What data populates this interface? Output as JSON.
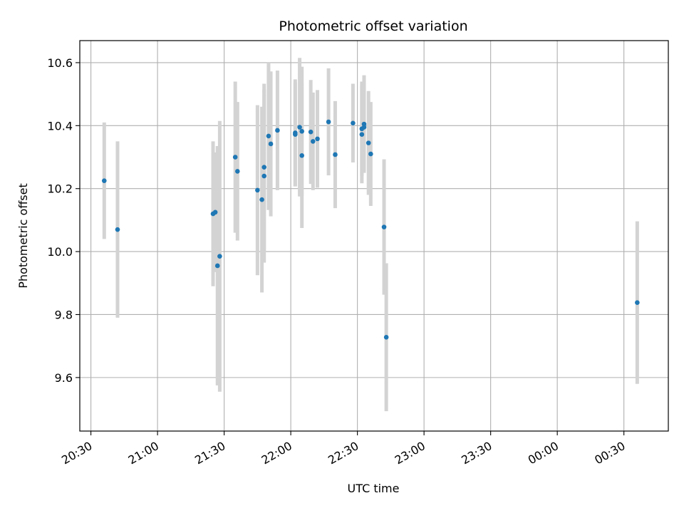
{
  "chart_data": {
    "type": "scatter",
    "title": "Photometric offset variation",
    "xlabel": "UTC time",
    "ylabel": "Photometric offset",
    "x_tick_labels": [
      "20:30",
      "21:00",
      "21:30",
      "22:00",
      "22:30",
      "23:00",
      "23:30",
      "00:00",
      "00:30"
    ],
    "y_tick_labels": [
      "9.6",
      "9.8",
      "10.0",
      "10.2",
      "10.4",
      "10.6"
    ],
    "y_ticks": [
      9.6,
      9.8,
      10.0,
      10.2,
      10.4,
      10.6
    ],
    "xlim_minutes_after_2030": [
      -5,
      260
    ],
    "ylim": [
      9.43,
      10.67
    ],
    "grid": true,
    "colors": {
      "point": "#1f77b4",
      "errorbar": "#d3d3d3",
      "grid": "#b0b0b0"
    },
    "points": [
      {
        "t": "20:36",
        "y": 10.225,
        "err": 0.185
      },
      {
        "t": "20:42",
        "y": 10.07,
        "err": 0.28
      },
      {
        "t": "21:25",
        "y": 10.12,
        "err": 0.23
      },
      {
        "t": "21:26",
        "y": 10.125,
        "err": 0.19
      },
      {
        "t": "21:27",
        "y": 9.955,
        "err": 0.38
      },
      {
        "t": "21:28",
        "y": 9.985,
        "err": 0.43
      },
      {
        "t": "21:35",
        "y": 10.3,
        "err": 0.24
      },
      {
        "t": "21:36",
        "y": 10.255,
        "err": 0.22
      },
      {
        "t": "21:45",
        "y": 10.195,
        "err": 0.27
      },
      {
        "t": "21:47",
        "y": 10.165,
        "err": 0.295
      },
      {
        "t": "21:48",
        "y": 10.268,
        "err": 0.265
      },
      {
        "t": "21:48",
        "y": 10.24,
        "err": 0.275
      },
      {
        "t": "21:50",
        "y": 10.367,
        "err": 0.235
      },
      {
        "t": "21:51",
        "y": 10.342,
        "err": 0.23
      },
      {
        "t": "21:54",
        "y": 10.385,
        "err": 0.19
      },
      {
        "t": "22:02",
        "y": 10.377,
        "err": 0.17
      },
      {
        "t": "22:02",
        "y": 10.372,
        "err": 0.165
      },
      {
        "t": "22:04",
        "y": 10.395,
        "err": 0.22
      },
      {
        "t": "22:05",
        "y": 10.382,
        "err": 0.205
      },
      {
        "t": "22:05",
        "y": 10.305,
        "err": 0.23
      },
      {
        "t": "22:09",
        "y": 10.38,
        "err": 0.165
      },
      {
        "t": "22:10",
        "y": 10.35,
        "err": 0.155
      },
      {
        "t": "22:12",
        "y": 10.358,
        "err": 0.155
      },
      {
        "t": "22:17",
        "y": 10.412,
        "err": 0.17
      },
      {
        "t": "22:20",
        "y": 10.308,
        "err": 0.17
      },
      {
        "t": "22:28",
        "y": 10.408,
        "err": 0.125
      },
      {
        "t": "22:32",
        "y": 10.372,
        "err": 0.155
      },
      {
        "t": "22:32",
        "y": 10.39,
        "err": 0.15
      },
      {
        "t": "22:33",
        "y": 10.395,
        "err": 0.14
      },
      {
        "t": "22:33",
        "y": 10.405,
        "err": 0.155
      },
      {
        "t": "22:35",
        "y": 10.345,
        "err": 0.165
      },
      {
        "t": "22:36",
        "y": 10.31,
        "err": 0.165
      },
      {
        "t": "22:42",
        "y": 10.078,
        "err": 0.215
      },
      {
        "t": "22:43",
        "y": 9.728,
        "err": 0.235
      },
      {
        "t": "00:36",
        "y": 9.838,
        "err": 0.258
      }
    ]
  }
}
